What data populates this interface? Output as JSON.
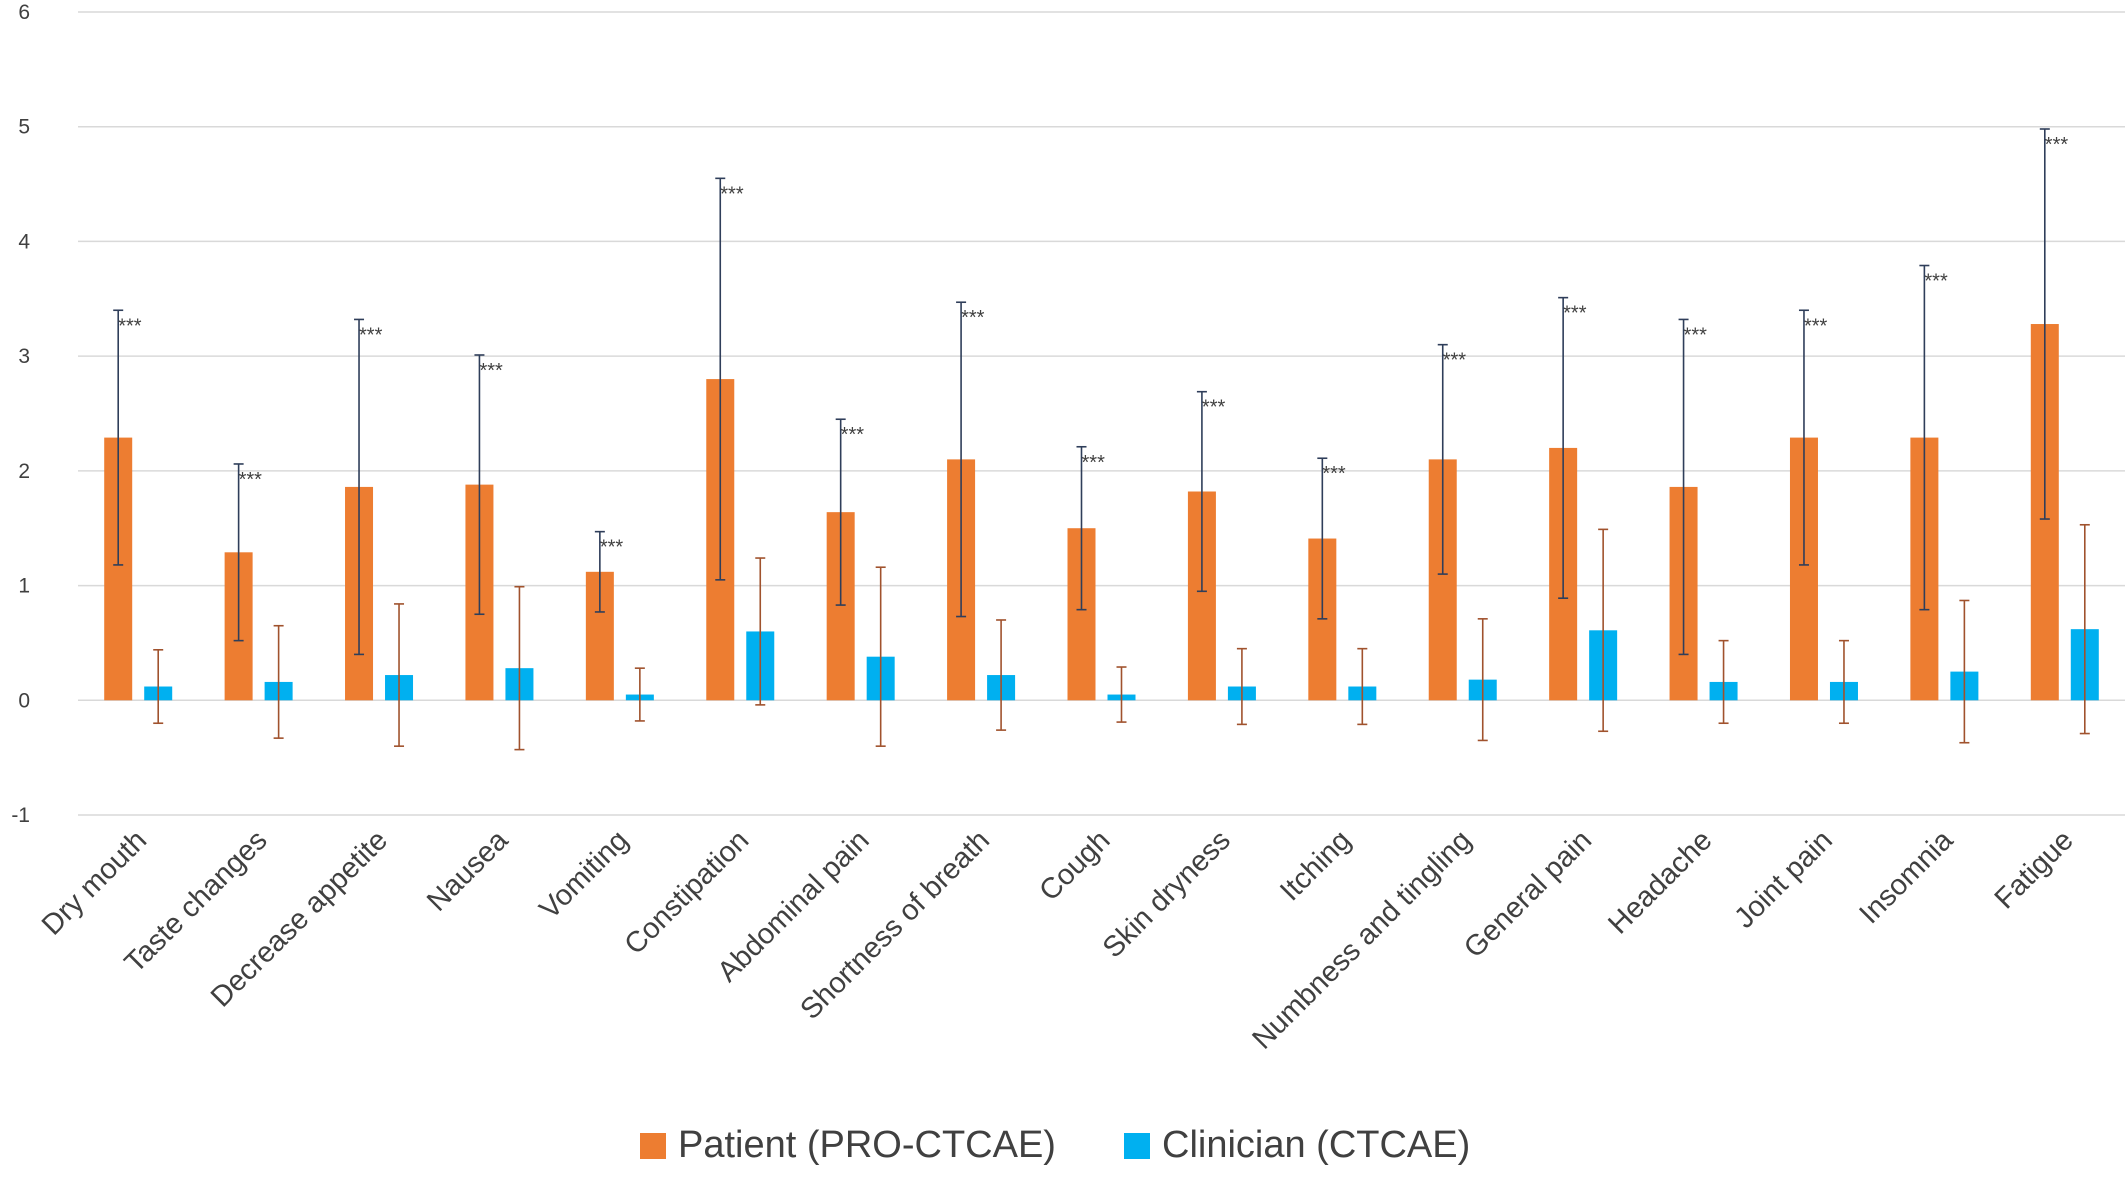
{
  "chart_data": {
    "type": "bar",
    "title": "",
    "xlabel": "",
    "ylabel": "",
    "ylim": [
      -1,
      6
    ],
    "yticks": [
      -1,
      0,
      1,
      2,
      3,
      4,
      5,
      6
    ],
    "grid": true,
    "legend_position": "bottom",
    "categories": [
      "Dry mouth",
      "Taste changes",
      "Decrease appetite",
      "Nausea",
      "Vomiting",
      "Constipation",
      "Abdominal pain",
      "Shortness of breath",
      "Cough",
      "Skin dryness",
      "Itching",
      "Numbness and tingling",
      "General pain",
      "Headache",
      "Joint pain",
      "Insomnia",
      "Fatigue"
    ],
    "series": [
      {
        "name": "Patient (PRO-CTCAE)",
        "color": "#ED7D31",
        "error_color": "#2F3E5A",
        "values": [
          2.29,
          1.29,
          1.86,
          1.88,
          1.12,
          2.8,
          1.64,
          2.1,
          1.5,
          1.82,
          1.41,
          2.1,
          2.2,
          1.86,
          2.29,
          2.29,
          3.28
        ],
        "error": [
          1.11,
          0.77,
          1.46,
          1.13,
          0.35,
          1.75,
          0.81,
          1.37,
          0.71,
          0.87,
          0.7,
          1.0,
          1.31,
          1.46,
          1.11,
          1.5,
          1.7
        ]
      },
      {
        "name": "Clinician (CTCAE)",
        "color": "#00B0F0",
        "error_color": "#A0522D",
        "values": [
          0.12,
          0.16,
          0.22,
          0.28,
          0.05,
          0.6,
          0.38,
          0.22,
          0.05,
          0.12,
          0.12,
          0.18,
          0.61,
          0.16,
          0.16,
          0.25,
          0.62
        ],
        "error": [
          0.32,
          0.49,
          0.62,
          0.71,
          0.23,
          0.64,
          0.78,
          0.48,
          0.24,
          0.33,
          0.33,
          0.53,
          0.88,
          0.36,
          0.36,
          0.62,
          0.91
        ]
      }
    ],
    "annotations": [
      "***",
      "***",
      "***",
      "***",
      "***",
      "***",
      "***",
      "***",
      "***",
      "***",
      "***",
      "***",
      "***",
      "***",
      "***",
      "***",
      "***"
    ]
  }
}
